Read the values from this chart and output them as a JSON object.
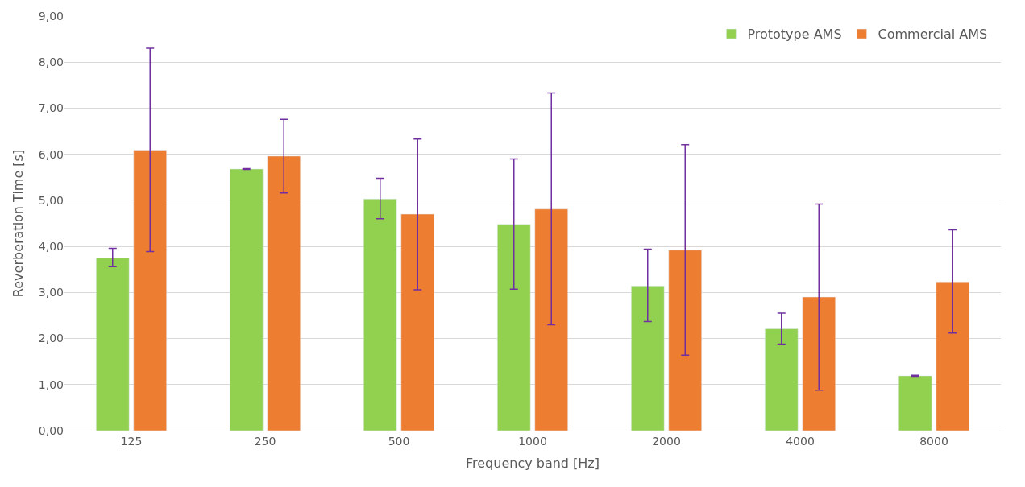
{
  "chart_data": {
    "type": "bar",
    "xlabel": "Frequency band [Hz]",
    "ylabel": "Reverberation Time [s]",
    "categories": [
      "125",
      "250",
      "500",
      "1000",
      "2000",
      "4000",
      "8000"
    ],
    "series": [
      {
        "name": "Prototype AMS",
        "color": "#92d050",
        "values": [
          3.75,
          5.68,
          5.03,
          4.48,
          3.14,
          2.21,
          1.19
        ],
        "errors": [
          [
            3.56,
            3.96
          ],
          [
            5.67,
            5.69
          ],
          [
            4.6,
            5.48
          ],
          [
            3.07,
            5.9
          ],
          [
            2.37,
            3.94
          ],
          [
            1.88,
            2.55
          ],
          [
            1.18,
            1.2
          ]
        ]
      },
      {
        "name": "Commercial AMS",
        "color": "#ed7d31",
        "values": [
          6.09,
          5.96,
          4.7,
          4.81,
          3.92,
          2.9,
          3.23
        ],
        "errors": [
          [
            3.89,
            8.3
          ],
          [
            5.16,
            6.76
          ],
          [
            3.06,
            6.33
          ],
          [
            2.3,
            7.33
          ],
          [
            1.64,
            6.21
          ],
          [
            0.88,
            4.92
          ],
          [
            2.12,
            4.36
          ]
        ]
      }
    ],
    "ylim": [
      0,
      9
    ],
    "yticks": [
      {
        "value": 0,
        "label": "0,00"
      },
      {
        "value": 1,
        "label": "1,00"
      },
      {
        "value": 2,
        "label": "2,00"
      },
      {
        "value": 3,
        "label": "3,00"
      },
      {
        "value": 4,
        "label": "4,00"
      },
      {
        "value": 5,
        "label": "5,00"
      },
      {
        "value": 6,
        "label": "6,00"
      },
      {
        "value": 7,
        "label": "7,00"
      },
      {
        "value": 8,
        "label": "8,00"
      },
      {
        "value": 9,
        "label": "9,00"
      }
    ],
    "grid": "y",
    "legend": "top right"
  }
}
